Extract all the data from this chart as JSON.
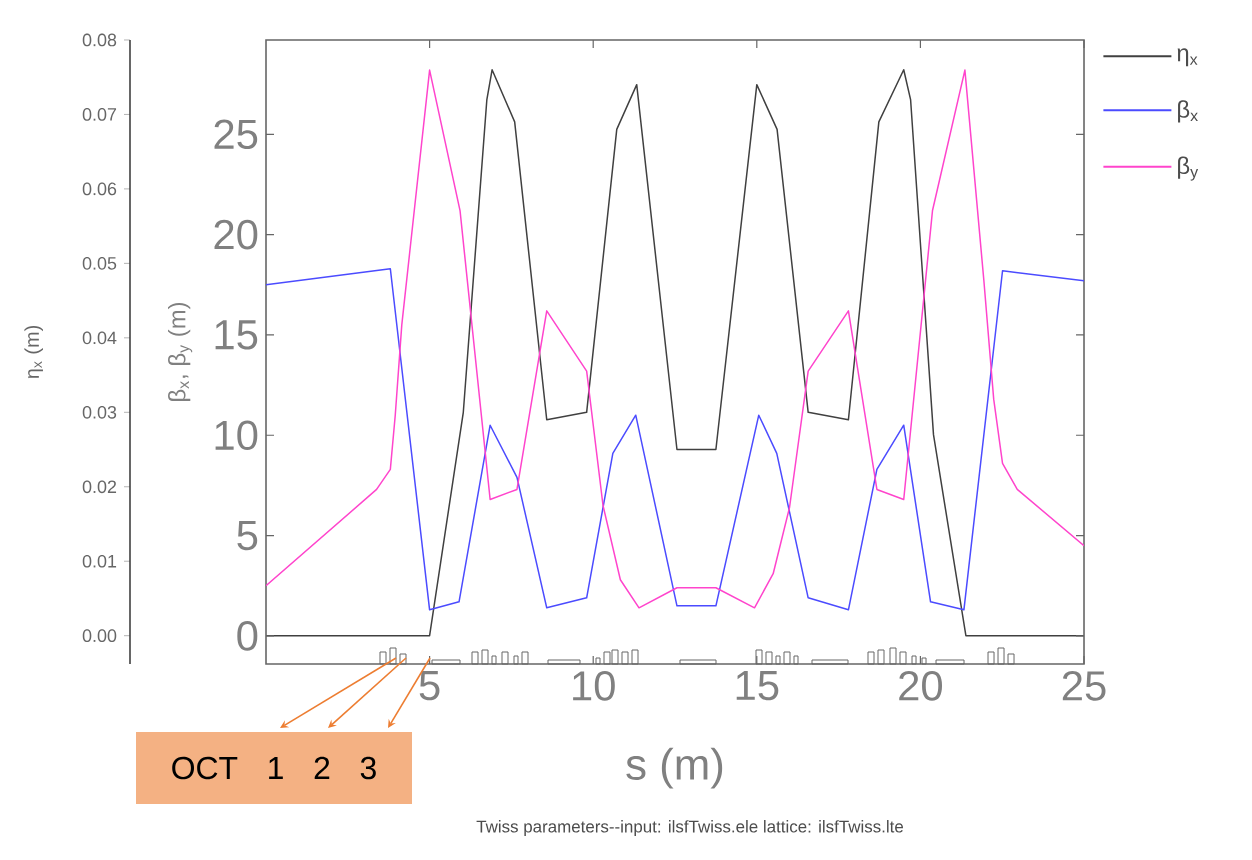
{
  "chart_data": {
    "type": "line",
    "xlabel": "s (m)",
    "ylabel": "β$_{x}$, β$_{y}$ (m)",
    "y2label": "η$_{x}$ (m)",
    "annotations": [
      "OCT 1 2 3",
      "Twiss parameters--input: ilsfTwiss.ele   lattice: ilsfTwiss.lte"
    ],
    "xlim": [
      0,
      25
    ],
    "xticks": [
      5,
      10,
      15,
      20,
      25
    ],
    "ylim": [
      -1.4,
      29.7
    ],
    "yticks": [
      0,
      5,
      10,
      15,
      20,
      25
    ],
    "y2lim": [
      -0.0038,
      0.08
    ],
    "y2ticks": [
      {
        "value": 0,
        "label": "0.00"
      },
      {
        "value": 0.01,
        "label": "0.01"
      },
      {
        "value": 0.02,
        "label": "0.02"
      },
      {
        "value": 0.03,
        "label": "0.03"
      },
      {
        "value": 0.04,
        "label": "0.04"
      },
      {
        "value": 0.05,
        "label": "0.05"
      },
      {
        "value": 0.06,
        "label": "0.06"
      },
      {
        "value": 0.07,
        "label": "0.07"
      },
      {
        "value": 0.08,
        "label": "0.08"
      }
    ],
    "legend": "top right",
    "series": [
      {
        "name": "η$_{x}$",
        "color": "#404040",
        "axis": "y2",
        "x": [
          0,
          5.0,
          6.03,
          6.75,
          6.91,
          7.6,
          8.58,
          9.8,
          10.72,
          11.33,
          12.56,
          13.75,
          15.0,
          15.62,
          16.57,
          17.8,
          18.73,
          19.49,
          19.7,
          20.4,
          21.39,
          25
        ],
        "values": [
          0,
          0,
          0.03,
          0.072,
          0.076,
          0.069,
          0.029,
          0.03,
          0.068,
          0.074,
          0.025,
          0.025,
          0.074,
          0.068,
          0.03,
          0.029,
          0.069,
          0.076,
          0.072,
          0.027,
          0,
          0
        ]
      },
      {
        "name": "β$_{x}$",
        "color": "#4b4bff",
        "x": [
          0,
          3.8,
          5.0,
          5.9,
          6.85,
          7.67,
          8.58,
          9.8,
          10.6,
          11.3,
          12.56,
          13.75,
          15.06,
          15.61,
          16.57,
          17.8,
          18.67,
          19.49,
          20.31,
          21.33,
          22.51,
          25
        ],
        "values": [
          17.5,
          18.3,
          1.3,
          1.7,
          10.5,
          7.9,
          1.4,
          1.9,
          9.1,
          11.0,
          1.5,
          1.5,
          11.0,
          9.1,
          1.9,
          1.3,
          8.3,
          10.5,
          1.7,
          1.3,
          18.2,
          17.7
        ]
      },
      {
        "name": "β$_{y}$",
        "color": "#ff44cc",
        "x": [
          0,
          3.38,
          3.8,
          3.95,
          4.15,
          5.0,
          5.93,
          6.85,
          7.67,
          8.58,
          9.8,
          10.3,
          10.83,
          11.4,
          12.56,
          13.75,
          14.93,
          15.5,
          16.0,
          16.57,
          17.8,
          18.67,
          19.49,
          20.37,
          21.36,
          21.94,
          22.24,
          22.51,
          22.96,
          25
        ],
        "values": [
          2.5,
          7.3,
          8.3,
          11.0,
          15.5,
          28.2,
          21.2,
          6.8,
          7.3,
          16.2,
          13.2,
          6.5,
          2.8,
          1.4,
          2.4,
          2.4,
          1.4,
          3.1,
          6.4,
          13.2,
          16.2,
          7.3,
          6.8,
          21.2,
          28.2,
          17.7,
          11.8,
          8.6,
          7.3,
          4.5
        ]
      }
    ]
  }
}
